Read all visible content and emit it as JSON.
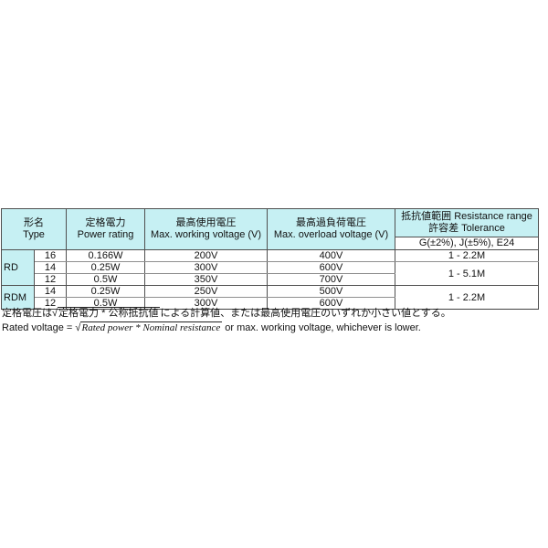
{
  "colors": {
    "page_bg": "#ffffff",
    "header_bg": "#c6f0f3",
    "border_dark": "#4f4f4f",
    "border_light": "#8f8f8f",
    "text": "#111111"
  },
  "table": {
    "header": {
      "type": {
        "ja": "形名",
        "en": "Type"
      },
      "power": {
        "ja": "定格電力",
        "en": "Power rating"
      },
      "working": {
        "ja": "最高使用電圧",
        "en": "Max. working voltage (V)"
      },
      "overload": {
        "ja": "最高過負荷電圧",
        "en": "Max. overload voltage (V)"
      },
      "resistance": {
        "line1": "抵抗値範囲 Resistance range",
        "line2": "許容差 Tolerance",
        "sub": "G(±2%), J(±5%), E24"
      }
    },
    "rows": [
      {
        "type": "RD",
        "size": "16",
        "power": "0.166W",
        "working": "200V",
        "overload": "400V",
        "range": "1 - 2.2M"
      },
      {
        "size": "14",
        "power": "0.25W",
        "working": "300V",
        "overload": "600V",
        "range": "1 - 5.1M"
      },
      {
        "size": "12",
        "power": "0.5W",
        "working": "350V",
        "overload": "700V"
      },
      {
        "type": "RDM",
        "size": "14",
        "power": "0.25W",
        "working": "250V",
        "overload": "500V",
        "range": "1 - 2.2M"
      },
      {
        "size": "12",
        "power": "0.5W",
        "working": "300V",
        "overload": "600V"
      }
    ]
  },
  "footer": {
    "ja": {
      "prefix": "定格電圧は",
      "radicand": "定格電力 * 公称抵抗値",
      "suffix": "による計算値、または最高使用電圧のいずれか小さい値とする。"
    },
    "en": {
      "prefix": "Rated voltage = ",
      "radicand": "Rated power  * Nominal resistance",
      "suffix": " or max. working voltage, whichever is lower.",
      "sqrt_symbol": "√"
    }
  }
}
